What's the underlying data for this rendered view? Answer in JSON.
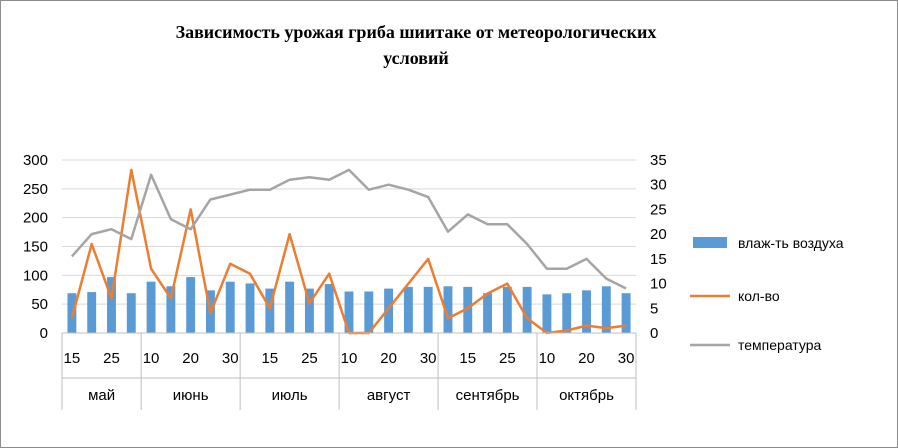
{
  "chart_data": {
    "type": "bar+line",
    "title": "Зависимость урожая гриба  шиитаке от метеорологических условий",
    "title_line1": "Зависимость урожая гриба  шиитаке от метеорологических",
    "title_line2": "условий",
    "left_axis": {
      "ylim": [
        0,
        300
      ],
      "ticks": [
        "0",
        "50",
        "100",
        "150",
        "200",
        "250",
        "300"
      ]
    },
    "right_axis": {
      "ylim": [
        0,
        35
      ],
      "ticks": [
        "0",
        "5",
        "10",
        "15",
        "20",
        "25",
        "30",
        "35"
      ]
    },
    "x_tick_labels": [
      "15",
      "25",
      "10",
      "20",
      "30",
      "15",
      "25",
      "10",
      "20",
      "30",
      "15",
      "25",
      "10",
      "20",
      "30"
    ],
    "months": [
      "май",
      "июнь",
      "июль",
      "август",
      "сентябрь",
      "октябрь"
    ],
    "month_spans": [
      [
        0,
        4
      ],
      [
        4,
        9
      ],
      [
        9,
        14
      ],
      [
        14,
        19
      ],
      [
        19,
        24
      ],
      [
        24,
        29
      ]
    ],
    "grid": true,
    "legend_position": "right",
    "series": [
      {
        "name": "влаж-ть  воздуха",
        "kind": "bar",
        "axis": "left",
        "color": "#5b9bd5",
        "values": [
          69,
          71,
          97,
          69,
          89,
          81,
          97,
          74,
          89,
          86,
          77,
          89,
          77,
          85,
          72,
          72,
          77,
          80,
          80,
          81,
          80,
          69,
          80,
          80,
          67,
          69,
          74,
          81,
          69
        ]
      },
      {
        "name": "кол-во",
        "kind": "line",
        "axis": "right",
        "color": "#ed7d31",
        "values": [
          3,
          18,
          7,
          33,
          13,
          7,
          25,
          4,
          14,
          12,
          5,
          20,
          6,
          12,
          0,
          0,
          5,
          10,
          15,
          3,
          5,
          8,
          10,
          3,
          0,
          0.5,
          1.5,
          1,
          1.5
        ]
      },
      {
        "name": "температура",
        "kind": "line",
        "axis": "right",
        "color": "#a5a5a5",
        "values": [
          15.5,
          20,
          21,
          19,
          32,
          23,
          21,
          27,
          28,
          29,
          29,
          31,
          31.5,
          31,
          33,
          29,
          30,
          29,
          27.5,
          20.5,
          24,
          22,
          22,
          18,
          13,
          13,
          15,
          11,
          9
        ]
      }
    ]
  }
}
